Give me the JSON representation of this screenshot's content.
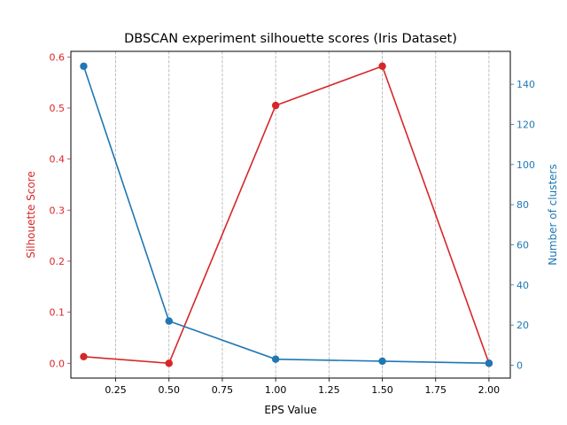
{
  "chart_data": {
    "type": "line",
    "title": "DBSCAN experiment silhouette scores (Iris Dataset)",
    "xlabel": "EPS Value",
    "x": [
      0.1,
      0.5,
      1.0,
      1.5,
      2.0
    ],
    "xlim": [
      0.04,
      2.1
    ],
    "xticks": [
      "0.25",
      "0.50",
      "0.75",
      "1.00",
      "1.25",
      "1.50",
      "1.75",
      "2.00"
    ],
    "xtick_values": [
      0.25,
      0.5,
      0.75,
      1.0,
      1.25,
      1.5,
      1.75,
      2.0
    ],
    "grid": "vertical dashed",
    "series": [
      {
        "axis": "left",
        "color": "#d62728",
        "values": [
          0.013,
          0.0,
          0.505,
          0.582,
          0.0
        ]
      },
      {
        "axis": "right",
        "color": "#1f77b4",
        "values": [
          149,
          22,
          3,
          2,
          1
        ]
      }
    ],
    "left_axis": {
      "label": "Silhouette Score",
      "color": "#d62728",
      "ylim": [
        -0.029,
        0.611
      ],
      "ticks": [
        "0.0",
        "0.1",
        "0.2",
        "0.3",
        "0.4",
        "0.5",
        "0.6"
      ],
      "tick_values": [
        0.0,
        0.1,
        0.2,
        0.3,
        0.4,
        0.5,
        0.6
      ]
    },
    "right_axis": {
      "label": "Number of clusters",
      "color": "#1f77b4",
      "ylim": [
        -6.4,
        156.4
      ],
      "ticks": [
        "0",
        "20",
        "40",
        "60",
        "80",
        "100",
        "120",
        "140"
      ],
      "tick_values": [
        0,
        20,
        40,
        60,
        80,
        100,
        120,
        140
      ]
    }
  }
}
